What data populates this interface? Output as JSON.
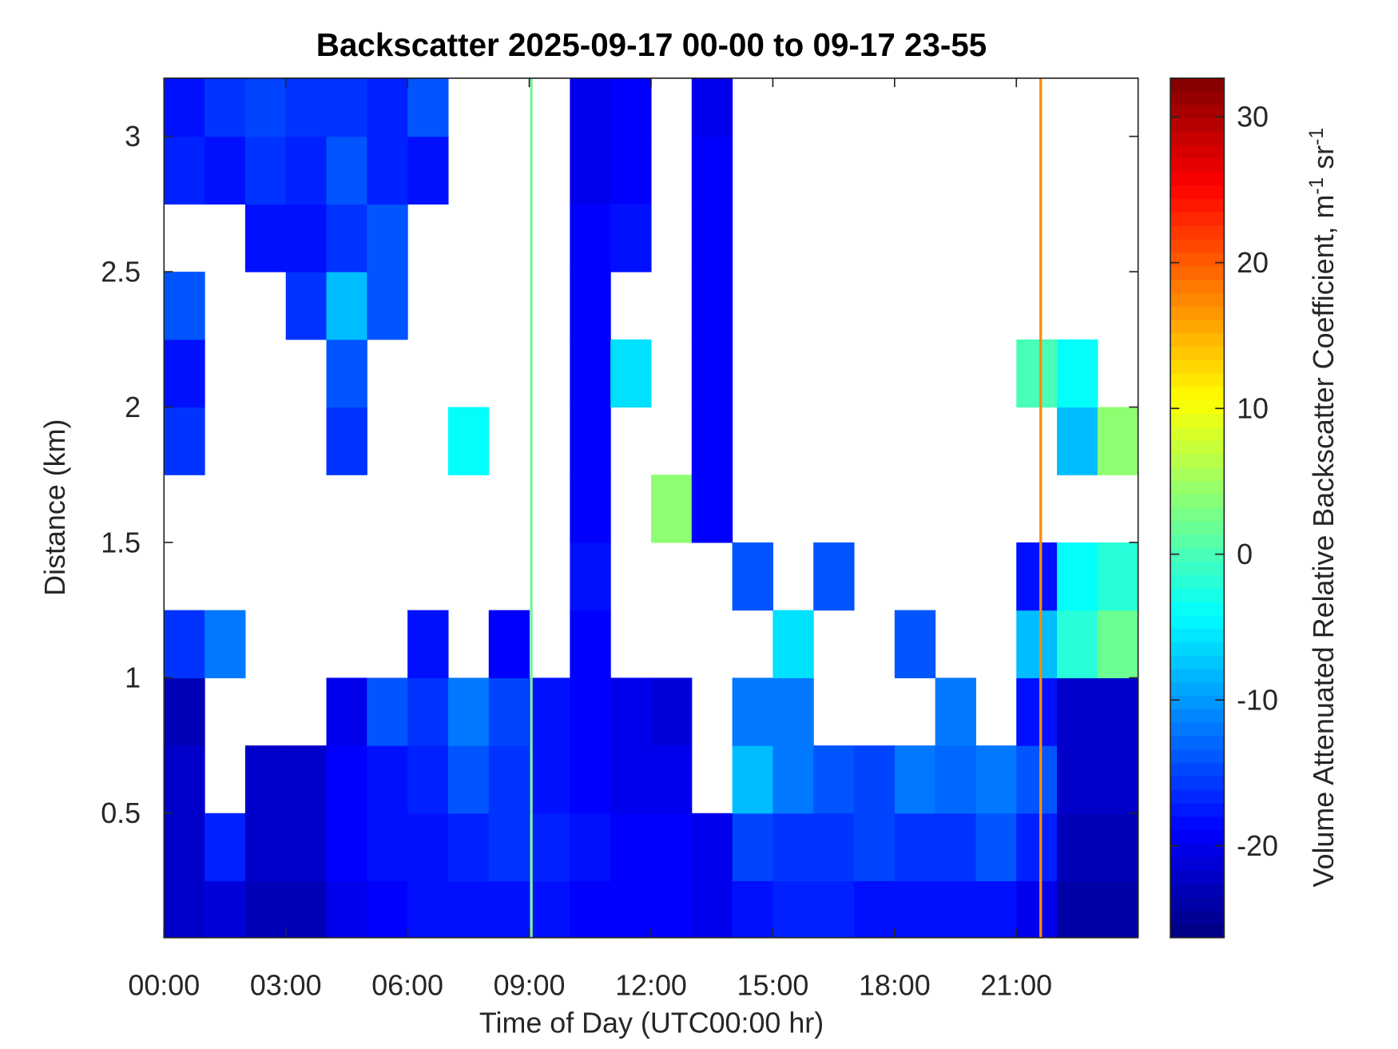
{
  "chart_data": {
    "type": "heatmap",
    "title": "Backscatter 2025-09-17 00-00 to 09-17 23-55",
    "xlabel": "Time of Day (UTC00:00 hr)",
    "ylabel": "Distance (km)",
    "clabel_parts": [
      "Volume Attenuated Relative Backscatter Coefficient, m",
      "-1",
      " sr",
      "-1"
    ],
    "colormap": "jet",
    "xlim": [
      0,
      24
    ],
    "xticks": [
      {
        "value": 0,
        "label": "00:00"
      },
      {
        "value": 3,
        "label": "03:00"
      },
      {
        "value": 6,
        "label": "06:00"
      },
      {
        "value": 9,
        "label": "09:00"
      },
      {
        "value": 12,
        "label": "12:00"
      },
      {
        "value": 15,
        "label": "15:00"
      },
      {
        "value": 18,
        "label": "18:00"
      },
      {
        "value": 21,
        "label": "21:00"
      }
    ],
    "ylim": [
      0.04,
      3.215
    ],
    "yticks": [
      0.5,
      1,
      1.5,
      2,
      2.5,
      3
    ],
    "clim": [
      -26.3,
      32.65
    ],
    "cticks": [
      -20,
      -10,
      0,
      10,
      20,
      30
    ],
    "x": [
      0.5,
      1.5,
      2.5,
      3.5,
      4.5,
      5.5,
      6.5,
      7.5,
      8.5,
      9.5,
      10.5,
      11.5,
      12.5,
      13.5,
      14.5,
      15.5,
      16.5,
      17.5,
      18.5,
      19.5,
      20.5,
      21.5,
      22.5,
      23.5
    ],
    "y": [
      0.125,
      0.375,
      0.625,
      0.875,
      1.125,
      1.375,
      1.625,
      1.875,
      2.125,
      2.375,
      2.625,
      2.875,
      3.125
    ],
    "z": [
      [
        -22,
        -21,
        -23,
        -23,
        -20,
        -19,
        -18,
        -18,
        -18,
        -18,
        -19,
        -19,
        -19,
        -20,
        -18,
        -17,
        -17,
        -18,
        -18,
        -18,
        -18,
        -20,
        -24,
        -24
      ],
      [
        -22,
        -17,
        -22,
        -22,
        -19,
        -18,
        -18,
        -17,
        -16,
        -17,
        -18,
        -19,
        -19,
        -20,
        -15,
        -16,
        -16,
        -15,
        -16,
        -16,
        -14,
        -17,
        -23,
        -23
      ],
      [
        -22,
        null,
        -22,
        -22,
        -19,
        -18,
        -17,
        -14,
        -16,
        -18,
        -19,
        -20,
        -20,
        null,
        -8,
        -12,
        -14,
        -15,
        -12,
        -13,
        -12,
        -14,
        -22,
        -22
      ],
      [
        -23,
        null,
        null,
        null,
        -20,
        -14,
        -16,
        -12,
        -15,
        -18,
        -19,
        -20,
        -21,
        null,
        -12,
        -12,
        null,
        null,
        null,
        -12,
        null,
        -18,
        -22,
        -22
      ],
      [
        -16,
        -12,
        null,
        null,
        null,
        null,
        -18,
        null,
        -19,
        null,
        -19,
        null,
        null,
        null,
        null,
        -6,
        null,
        null,
        -14,
        null,
        null,
        -8,
        -2,
        2
      ],
      [
        null,
        null,
        null,
        null,
        null,
        null,
        null,
        null,
        null,
        null,
        -18,
        null,
        null,
        null,
        -14,
        null,
        -14,
        null,
        null,
        null,
        null,
        -18,
        -4,
        -2
      ],
      [
        null,
        null,
        null,
        null,
        null,
        null,
        null,
        null,
        null,
        null,
        -19,
        null,
        4,
        -19,
        null,
        null,
        null,
        null,
        null,
        null,
        null,
        null,
        null,
        null
      ],
      [
        -16,
        null,
        null,
        null,
        -16,
        null,
        null,
        -4,
        null,
        null,
        -19,
        null,
        null,
        -19,
        null,
        null,
        null,
        null,
        null,
        null,
        null,
        null,
        -8,
        4
      ],
      [
        -18,
        null,
        null,
        null,
        -14,
        null,
        null,
        null,
        null,
        null,
        -19,
        -6,
        null,
        -19,
        null,
        null,
        null,
        null,
        null,
        null,
        null,
        0,
        -4,
        null
      ],
      [
        -14,
        null,
        null,
        -16,
        -8,
        -14,
        null,
        null,
        null,
        null,
        -19,
        null,
        null,
        -19,
        null,
        null,
        null,
        null,
        null,
        null,
        null,
        null,
        null,
        null
      ],
      [
        null,
        null,
        -18,
        -18,
        -16,
        -14,
        null,
        null,
        null,
        null,
        -19,
        -18,
        null,
        -19,
        null,
        null,
        null,
        null,
        null,
        null,
        null,
        null,
        null,
        null
      ],
      [
        -17,
        -18,
        -16,
        -17,
        -14,
        -17,
        -18,
        null,
        null,
        null,
        -20,
        -19,
        null,
        -19,
        null,
        null,
        null,
        null,
        null,
        null,
        null,
        null,
        null,
        null
      ],
      [
        -18,
        -16,
        -15,
        -16,
        -16,
        -17,
        -14,
        null,
        null,
        null,
        -20,
        -19,
        null,
        -20,
        null,
        null,
        null,
        null,
        null,
        null,
        null,
        null,
        null,
        null
      ]
    ],
    "markers": [
      {
        "x": 9.05,
        "color": "#7df0a0"
      },
      {
        "x": 21.6,
        "color": "#ff8c00"
      }
    ]
  }
}
